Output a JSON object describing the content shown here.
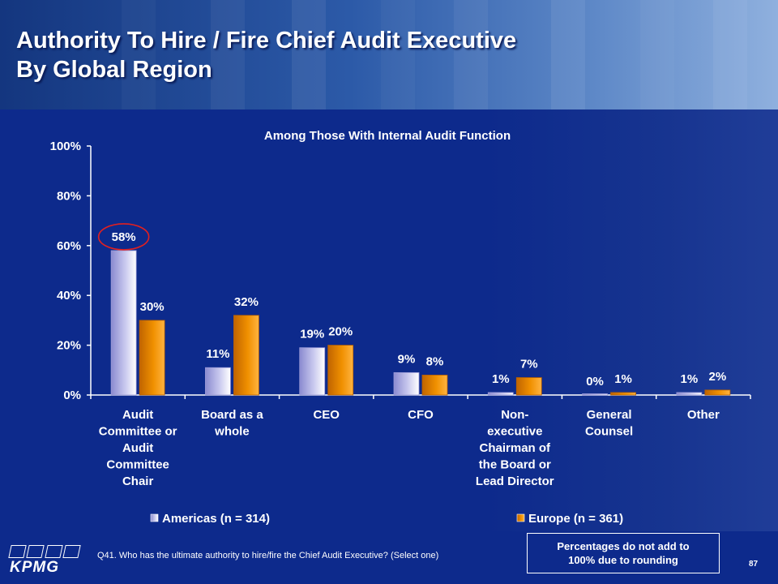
{
  "title_lines": [
    "Authority To Hire / Fire Chief Audit Executive",
    "By Global Region"
  ],
  "footnote": "Q41. Who has the ultimate authority to hire/fire the Chief Audit Executive? (Select one)",
  "note_box_lines": [
    "Percentages do not add to",
    "100% due to rounding"
  ],
  "logo_text": "KPMG",
  "page_number": "87",
  "colors": {
    "background": "#0d2a8c",
    "americas": "#c8c8ee",
    "europe": "#f09000",
    "highlight_circle": "#e02020"
  },
  "chart_data": {
    "type": "bar",
    "title": "Among Those With Internal Audit Function",
    "categories": [
      [
        "Audit",
        "Committee or",
        "Audit",
        "Committee",
        "Chair"
      ],
      [
        "Board as a",
        "whole"
      ],
      [
        "CEO"
      ],
      [
        "CFO"
      ],
      [
        "Non-",
        "executive",
        "Chairman of",
        "the Board or",
        "Lead Director"
      ],
      [
        "General",
        "Counsel"
      ],
      [
        "Other"
      ]
    ],
    "series": [
      {
        "name": "Americas (n = 314)",
        "values": [
          58,
          11,
          19,
          9,
          1,
          0,
          1
        ],
        "labels": [
          "58%",
          "11%",
          "19%",
          "9%",
          "1%",
          "0%",
          "1%"
        ]
      },
      {
        "name": "Europe (n = 361)",
        "values": [
          30,
          32,
          20,
          8,
          7,
          1,
          2
        ],
        "labels": [
          "30%",
          "32%",
          "20%",
          "8%",
          "7%",
          "1%",
          "2%"
        ]
      }
    ],
    "yticks": [
      "0%",
      "20%",
      "40%",
      "60%",
      "80%",
      "100%"
    ],
    "ylim": [
      0,
      100
    ],
    "grid": false,
    "legend_position": "bottom",
    "highlighted_label": "58%"
  }
}
